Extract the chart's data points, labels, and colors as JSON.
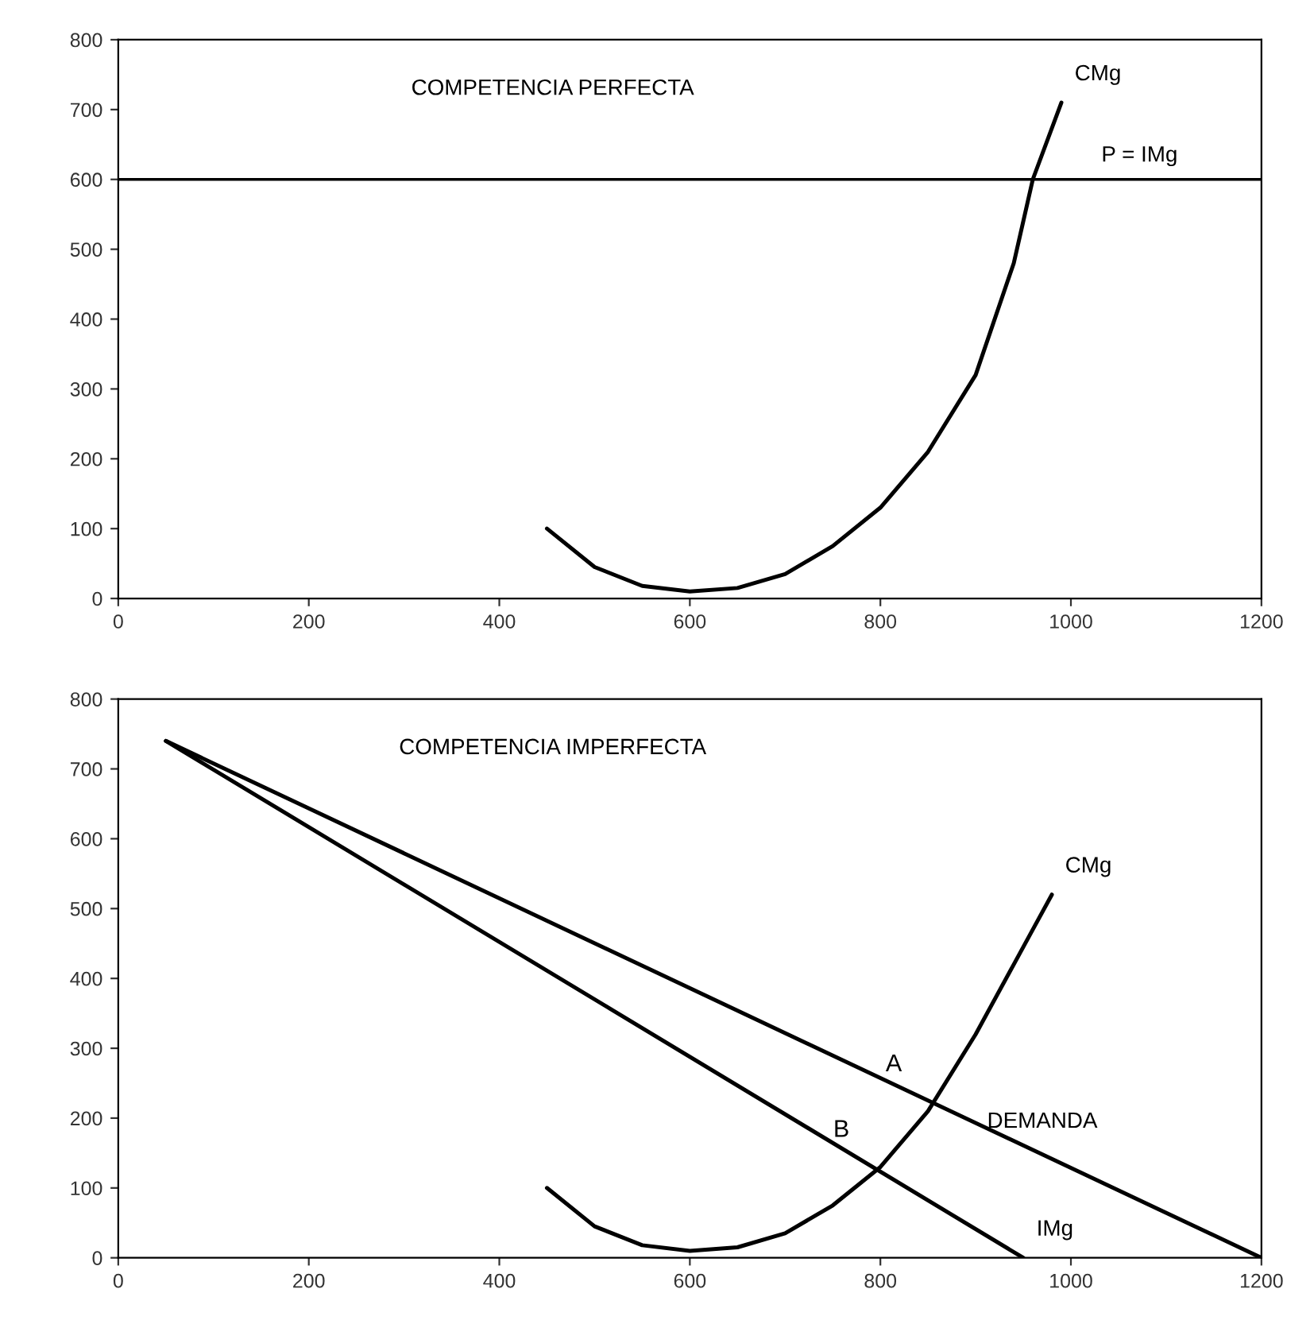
{
  "chart_data": [
    {
      "type": "line",
      "title": "COMPETENCIA PERFECTA",
      "xlim": [
        0,
        1200
      ],
      "ylim": [
        0,
        800
      ],
      "xticks": [
        0,
        200,
        400,
        600,
        800,
        1000,
        1200
      ],
      "yticks": [
        0,
        100,
        200,
        300,
        400,
        500,
        600,
        700,
        800
      ],
      "grid": false,
      "series": [
        {
          "name": "CMg",
          "color": "#000000",
          "x": [
            450,
            500,
            550,
            600,
            650,
            700,
            750,
            800,
            850,
            900,
            940,
            960,
            990
          ],
          "values": [
            100,
            45,
            18,
            10,
            15,
            35,
            75,
            130,
            210,
            320,
            480,
            600,
            710
          ]
        }
      ],
      "ref_lines": [
        {
          "axis": "y",
          "value": 600,
          "label": "P = IMg",
          "color": "#000000"
        }
      ]
    },
    {
      "type": "line",
      "title": "COMPETENCIA IMPERFECTA",
      "xlim": [
        0,
        1200
      ],
      "ylim": [
        0,
        800
      ],
      "xticks": [
        0,
        200,
        400,
        600,
        800,
        1000,
        1200
      ],
      "yticks": [
        0,
        100,
        200,
        300,
        400,
        500,
        600,
        700,
        800
      ],
      "grid": false,
      "series": [
        {
          "name": "DEMANDA",
          "color": "#000000",
          "x": [
            50,
            1200
          ],
          "values": [
            740,
            0
          ]
        },
        {
          "name": "IMg",
          "color": "#000000",
          "x": [
            50,
            950
          ],
          "values": [
            740,
            0
          ]
        },
        {
          "name": "CMg",
          "color": "#000000",
          "x": [
            450,
            500,
            550,
            600,
            650,
            700,
            750,
            800,
            850,
            900,
            940,
            960,
            980
          ],
          "values": [
            100,
            45,
            18,
            10,
            15,
            35,
            75,
            130,
            210,
            320,
            420,
            470,
            520
          ]
        }
      ],
      "annotations": [
        {
          "text": "A",
          "x": 855,
          "y": 222
        },
        {
          "text": "B",
          "x": 800,
          "y": 128
        }
      ]
    }
  ]
}
